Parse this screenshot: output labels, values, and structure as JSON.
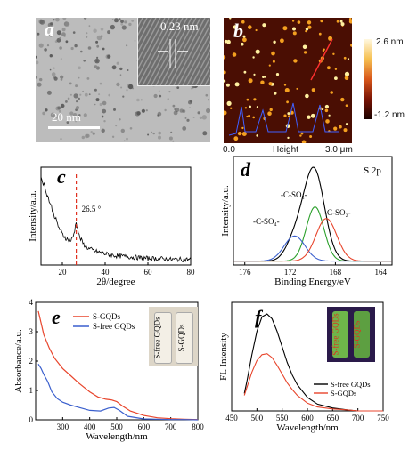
{
  "panel_a": {
    "letter": "a",
    "lattice_label": "0.23 nm",
    "scale_bar_label": "20 nm"
  },
  "panel_b": {
    "letter": "b",
    "colorbar_max": "2.6 nm",
    "colorbar_min": "-1.2 nm",
    "x_start": "0.0",
    "x_mid_label": "Height",
    "x_end": "3.0 μm"
  },
  "chart_data": [
    {
      "panel": "c",
      "type": "line",
      "xlabel": "2θ/degree",
      "ylabel": "Intensity/a.u.",
      "xlim": [
        10,
        80
      ],
      "xticks": [
        20,
        40,
        60,
        80
      ],
      "annotation": "26.5 °",
      "peak_x": 26.5,
      "series": [
        {
          "x": [
            10,
            12,
            14,
            16,
            18,
            20,
            22,
            24,
            25,
            26,
            26.5,
            27,
            28,
            30,
            32,
            35,
            40,
            45,
            50,
            55,
            60,
            65,
            70,
            75,
            80
          ],
          "y": [
            0.95,
            0.82,
            0.68,
            0.55,
            0.42,
            0.33,
            0.28,
            0.26,
            0.3,
            0.4,
            0.48,
            0.4,
            0.3,
            0.22,
            0.18,
            0.15,
            0.12,
            0.1,
            0.09,
            0.08,
            0.07,
            0.07,
            0.06,
            0.06,
            0.06
          ]
        }
      ]
    },
    {
      "panel": "d",
      "type": "line",
      "title": "S 2p",
      "xlabel": "Binding Energy/eV",
      "ylabel": "Intensity/a.u.",
      "xlim": [
        177,
        163
      ],
      "xticks": [
        176,
        172,
        168,
        164
      ],
      "peak_labels": [
        "-C-SO₃-",
        "-C-SO₄-",
        "-C-SO₂-"
      ],
      "series": [
        {
          "name": "envelope",
          "color": "#000000",
          "center": 169.8,
          "height": 1.0,
          "width": 1.9
        },
        {
          "name": "-C-SO3-",
          "color": "#2ca02c",
          "center": 169.8,
          "height": 0.56,
          "width": 1.1
        },
        {
          "name": "-C-SO4-",
          "color": "#3a5fcd",
          "center": 171.6,
          "height": 0.26,
          "width": 1.3
        },
        {
          "name": "-C-SO2-",
          "color": "#e8452c",
          "center": 168.8,
          "height": 0.44,
          "width": 1.3
        }
      ]
    },
    {
      "panel": "e",
      "type": "line",
      "xlabel": "Wavelength/nm",
      "ylabel": "Absorbance/a.u.",
      "xlim": [
        200,
        800
      ],
      "ylim": [
        0,
        4
      ],
      "xticks": [
        300,
        400,
        500,
        600,
        700,
        800
      ],
      "yticks": [
        0,
        1,
        2,
        3,
        4
      ],
      "inset_labels": [
        "S-free GQDs",
        "S-GQDs"
      ],
      "series": [
        {
          "name": "S-GQDs",
          "color": "#e8452c",
          "x": [
            210,
            220,
            230,
            250,
            270,
            300,
            330,
            360,
            400,
            430,
            460,
            480,
            500,
            520,
            550,
            600,
            650,
            700,
            750,
            800
          ],
          "y": [
            3.7,
            3.3,
            2.9,
            2.45,
            2.1,
            1.75,
            1.5,
            1.25,
            0.95,
            0.78,
            0.7,
            0.68,
            0.62,
            0.48,
            0.3,
            0.15,
            0.07,
            0.04,
            0.02,
            0.01
          ]
        },
        {
          "name": "S-free GQDs",
          "color": "#3a5fcd",
          "x": [
            210,
            220,
            230,
            245,
            260,
            280,
            300,
            330,
            360,
            400,
            440,
            470,
            490,
            510,
            540,
            600,
            650,
            700,
            750,
            800
          ],
          "y": [
            1.9,
            1.75,
            1.55,
            1.3,
            0.95,
            0.72,
            0.6,
            0.5,
            0.42,
            0.32,
            0.3,
            0.4,
            0.42,
            0.32,
            0.12,
            0.03,
            0.02,
            0.01,
            0.01,
            0.0
          ]
        }
      ]
    },
    {
      "panel": "f",
      "type": "line",
      "xlabel": "Wavelength/nm",
      "ylabel": "FL Intensity",
      "xlim": [
        450,
        750
      ],
      "xticks": [
        450,
        500,
        550,
        600,
        650,
        700,
        750
      ],
      "inset_labels": [
        "S-free GQDs",
        "S-GQDs"
      ],
      "series": [
        {
          "name": "S-free GQDs",
          "color": "#000000",
          "x": [
            475,
            480,
            490,
            500,
            510,
            520,
            530,
            540,
            550,
            560,
            570,
            580,
            600,
            620,
            650,
            680,
            700,
            750
          ],
          "y": [
            0.18,
            0.3,
            0.58,
            0.82,
            0.97,
            1.0,
            0.95,
            0.82,
            0.66,
            0.5,
            0.37,
            0.27,
            0.14,
            0.07,
            0.03,
            0.01,
            0.0,
            0.0
          ]
        },
        {
          "name": "S-GQDs",
          "color": "#e8452c",
          "x": [
            475,
            480,
            490,
            500,
            510,
            520,
            530,
            540,
            550,
            560,
            570,
            580,
            600,
            620,
            650,
            680,
            700,
            750
          ],
          "y": [
            0.16,
            0.24,
            0.4,
            0.52,
            0.58,
            0.59,
            0.55,
            0.47,
            0.38,
            0.29,
            0.22,
            0.16,
            0.08,
            0.04,
            0.02,
            0.01,
            0.0,
            0.0
          ]
        }
      ]
    }
  ],
  "colors": {
    "afm_dark": "#1a0500",
    "afm_mid": "#8a1a05",
    "afm_bright": "#f4a020",
    "tem_bg": "#b9b9b9"
  }
}
